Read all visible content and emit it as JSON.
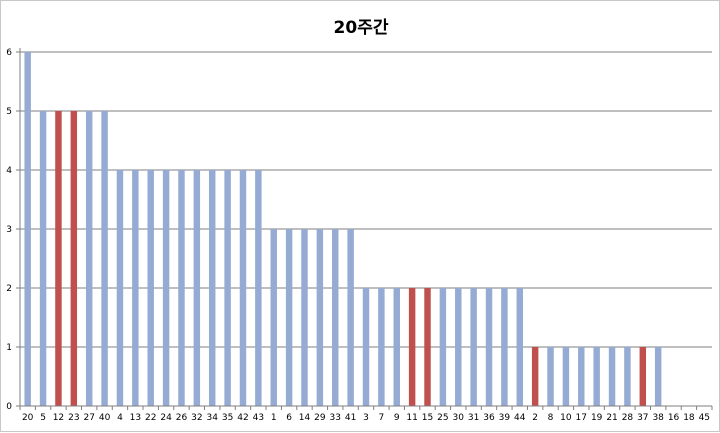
{
  "chart_data": {
    "type": "bar",
    "title": "20주간",
    "xlabel": "",
    "ylabel": "",
    "ylim": [
      0,
      6
    ],
    "yticks": [
      "0",
      "1",
      "2",
      "3",
      "4",
      "5",
      "6"
    ],
    "grid": true,
    "legend": "none",
    "categories": [
      "20",
      "5",
      "12",
      "23",
      "27",
      "40",
      "4",
      "13",
      "22",
      "24",
      "26",
      "32",
      "34",
      "35",
      "42",
      "43",
      "1",
      "6",
      "14",
      "29",
      "33",
      "41",
      "3",
      "7",
      "9",
      "11",
      "15",
      "25",
      "30",
      "31",
      "36",
      "39",
      "44",
      "2",
      "8",
      "10",
      "17",
      "19",
      "21",
      "28",
      "37",
      "38",
      "16",
      "18",
      "45"
    ],
    "values": [
      6,
      5,
      5,
      5,
      5,
      5,
      4,
      4,
      4,
      4,
      4,
      4,
      4,
      4,
      4,
      4,
      3,
      3,
      3,
      3,
      3,
      3,
      2,
      2,
      2,
      2,
      2,
      2,
      2,
      2,
      2,
      2,
      2,
      1,
      1,
      1,
      1,
      1,
      1,
      1,
      1,
      1,
      0,
      0,
      0
    ],
    "highlighted": [
      "12",
      "23",
      "11",
      "15",
      "2",
      "37"
    ],
    "colors": {
      "bar": "#95abd4",
      "highlight": "#c0504d",
      "grid": "#7f7f7f",
      "axis": "#7f7f7f"
    }
  }
}
